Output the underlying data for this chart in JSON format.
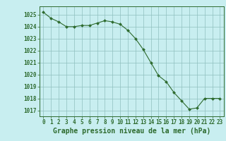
{
  "x": [
    0,
    1,
    2,
    3,
    4,
    5,
    6,
    7,
    8,
    9,
    10,
    11,
    12,
    13,
    14,
    15,
    16,
    17,
    18,
    19,
    20,
    21,
    22,
    23
  ],
  "y": [
    1025.2,
    1024.7,
    1024.4,
    1024.0,
    1024.0,
    1024.1,
    1024.1,
    1024.3,
    1024.5,
    1024.4,
    1024.2,
    1023.7,
    1023.0,
    1022.1,
    1021.0,
    1019.9,
    1019.4,
    1018.5,
    1017.8,
    1017.1,
    1017.2,
    1018.0,
    1018.0,
    1018.0
  ],
  "line_color": "#2d6a2d",
  "marker_color": "#2d6a2d",
  "bg_color": "#c8eef0",
  "grid_color": "#8fbfbf",
  "axis_color": "#2d6a2d",
  "title": "Graphe pression niveau de la mer (hPa)",
  "ylim_min": 1016.5,
  "ylim_max": 1025.7,
  "yticks": [
    1017,
    1018,
    1019,
    1020,
    1021,
    1022,
    1023,
    1024,
    1025
  ],
  "xticks": [
    0,
    1,
    2,
    3,
    4,
    5,
    6,
    7,
    8,
    9,
    10,
    11,
    12,
    13,
    14,
    15,
    16,
    17,
    18,
    19,
    20,
    21,
    22,
    23
  ],
  "tick_fontsize": 5.5,
  "title_fontsize": 7.0
}
